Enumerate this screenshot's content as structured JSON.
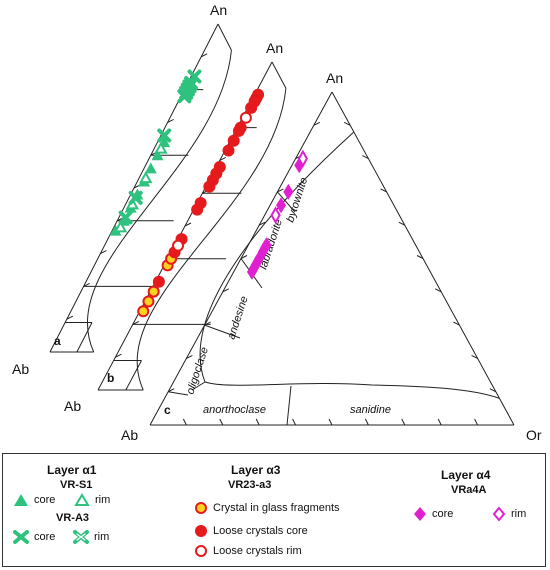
{
  "chart_data": {
    "type": "scatter",
    "title": "",
    "diagram": "ternary An-Ab-Or feldspar classification (three offset panels)",
    "vertex_labels": {
      "top": "An",
      "left": "Ab",
      "right": "Or"
    },
    "panel_labels": [
      "a",
      "b",
      "c"
    ],
    "field_labels": [
      "anorthoclase",
      "sanidine",
      "oligoclase",
      "andesine",
      "labradorite",
      "bytownite"
    ],
    "series": [
      {
        "name": "core",
        "layer": "Layer α1",
        "sample": "VR-S1",
        "panel": "a",
        "marker": "triangle-filled",
        "color": "#2ec27e",
        "points": [
          [
            37,
            62
          ],
          [
            40,
            58
          ],
          [
            44,
            54
          ],
          [
            48,
            50
          ],
          [
            52,
            46
          ],
          [
            56,
            42
          ],
          [
            60,
            38
          ],
          [
            64,
            34
          ]
        ]
      },
      {
        "name": "rim",
        "layer": "Layer α1",
        "sample": "VR-S1",
        "panel": "a",
        "marker": "triangle-open",
        "color": "#2ec27e",
        "points": [
          [
            38,
            60
          ],
          [
            45,
            53
          ],
          [
            53,
            45
          ],
          [
            62,
            36
          ]
        ]
      },
      {
        "name": "core",
        "layer": "Layer α1",
        "sample": "VR-A3",
        "panel": "a",
        "marker": "x-filled",
        "color": "#2ec27e",
        "points": [
          [
            84,
            15
          ],
          [
            82,
            17
          ],
          [
            80,
            19
          ],
          [
            79,
            20
          ],
          [
            78,
            21
          ],
          [
            66,
            33
          ],
          [
            41,
            57
          ],
          [
            47,
            51
          ]
        ]
      },
      {
        "name": "rim",
        "layer": "Layer α1",
        "sample": "VR-A3",
        "panel": "a",
        "marker": "x-open",
        "color": "#2ec27e",
        "points": [
          [
            81,
            18
          ],
          [
            78,
            21
          ]
        ]
      },
      {
        "name": "Crystal in glass fragments",
        "layer": "Layer α3",
        "sample": "VR23-a3",
        "panel": "b",
        "marker": "circle-yellow",
        "color": "#e41a1c",
        "points": [
          [
            30,
            69
          ],
          [
            27,
            72
          ],
          [
            24,
            75
          ],
          [
            38,
            61
          ],
          [
            40,
            59
          ]
        ]
      },
      {
        "name": "Loose crystals core",
        "layer": "Layer α3",
        "sample": "VR23-a3",
        "panel": "b",
        "marker": "circle-filled",
        "color": "#e41a1c",
        "points": [
          [
            90,
            9
          ],
          [
            89,
            10
          ],
          [
            88,
            11
          ],
          [
            86,
            13
          ],
          [
            80,
            19
          ],
          [
            79,
            20
          ],
          [
            76,
            23
          ],
          [
            73,
            26
          ],
          [
            68,
            31
          ],
          [
            66,
            33
          ],
          [
            64,
            35
          ],
          [
            62,
            37
          ],
          [
            57,
            42
          ],
          [
            55,
            44
          ],
          [
            46,
            53
          ],
          [
            42,
            57
          ],
          [
            33,
            66
          ]
        ]
      },
      {
        "name": "Loose crystals rim",
        "layer": "Layer α3",
        "sample": "VR23-a3",
        "panel": "b",
        "marker": "circle-open",
        "color": "#e41a1c",
        "points": [
          [
            83,
            16
          ],
          [
            44,
            55
          ]
        ]
      },
      {
        "name": "core",
        "layer": "Layer α4",
        "sample": "VRa4A",
        "panel": "c",
        "marker": "diamond-filled",
        "color": "#e020d0",
        "points": [
          [
            78,
            20
          ],
          [
            70,
            27
          ],
          [
            66,
            31
          ],
          [
            54,
            41
          ],
          [
            53,
            42
          ],
          [
            52,
            43
          ],
          [
            50,
            45
          ],
          [
            49,
            46
          ],
          [
            48,
            47
          ],
          [
            47,
            48
          ],
          [
            46,
            49
          ]
        ]
      },
      {
        "name": "rim",
        "layer": "Layer α4",
        "sample": "VRa4A",
        "panel": "c",
        "marker": "diamond-open",
        "color": "#e020d0",
        "points": [
          [
            80,
            18
          ],
          [
            63,
            34
          ]
        ]
      }
    ]
  },
  "legend": {
    "groups": [
      {
        "title": "Layer α1",
        "samples": [
          {
            "name": "VR-S1",
            "items": [
              {
                "label": "core",
                "marker": "triangle-filled"
              },
              {
                "label": "rim",
                "marker": "triangle-open"
              }
            ]
          },
          {
            "name": "VR-A3",
            "items": [
              {
                "label": "core",
                "marker": "x-filled"
              },
              {
                "label": "rim",
                "marker": "x-open"
              }
            ]
          }
        ]
      },
      {
        "title": "Layer α3",
        "samples": [
          {
            "name": "VR23-a3",
            "items": [
              {
                "label": "Crystal in glass fragments",
                "marker": "circle-yellow"
              },
              {
                "label": "Loose crystals core",
                "marker": "circle-filled"
              },
              {
                "label": "Loose crystals rim",
                "marker": "circle-open"
              }
            ]
          }
        ]
      },
      {
        "title": "Layer α4",
        "samples": [
          {
            "name": "VRa4A",
            "items": [
              {
                "label": "core",
                "marker": "diamond-filled"
              },
              {
                "label": "rim",
                "marker": "diamond-open"
              }
            ]
          }
        ]
      }
    ]
  }
}
